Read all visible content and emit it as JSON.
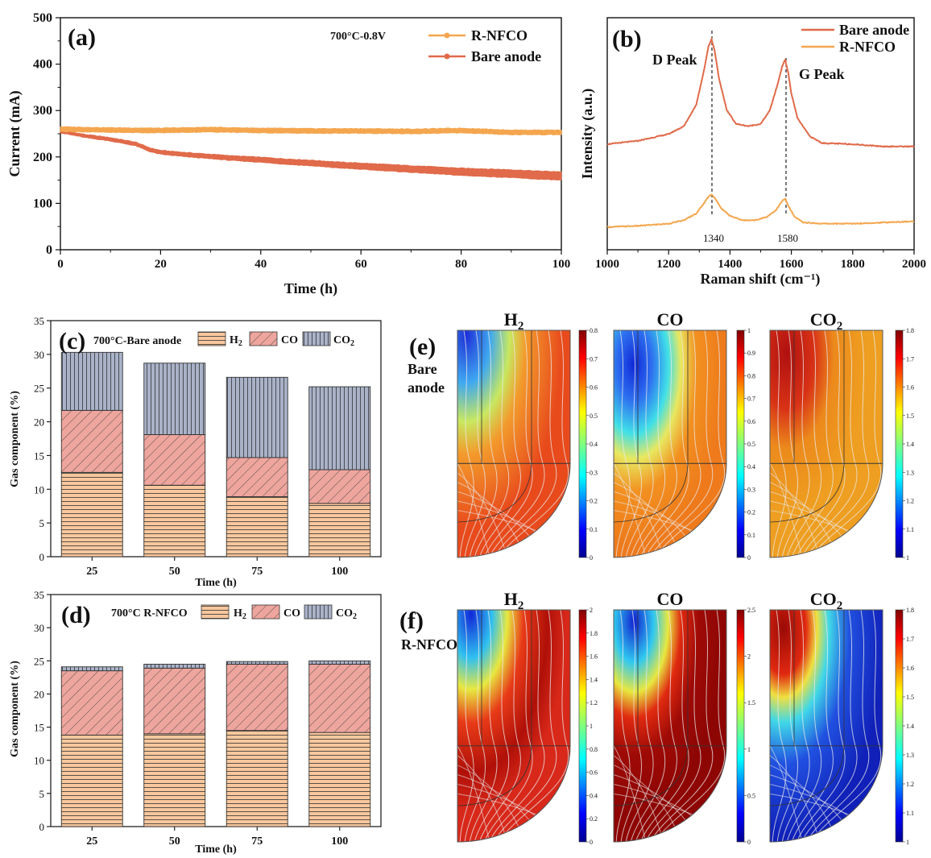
{
  "colors": {
    "rnfco": "#F4A64F",
    "bare": "#E06A4A",
    "h2": "#F8C79D",
    "co": "#EEA59D",
    "co2": "#A9B2C8"
  },
  "chart_data": [
    {
      "id": "a",
      "type": "line",
      "panel_label": "(a)",
      "title": "700°C-0.8V",
      "xlabel": "Time (h)",
      "ylabel": "Current (mA)",
      "xlim": [
        0,
        100
      ],
      "ylim": [
        0,
        500
      ],
      "xticks": [
        "0",
        "20",
        "40",
        "60",
        "80",
        "100"
      ],
      "yticks": [
        "0",
        "100",
        "200",
        "300",
        "400",
        "500"
      ],
      "legend": "top-right",
      "series": [
        {
          "name": "R-NFCO",
          "x": [
            0,
            10,
            20,
            30,
            40,
            50,
            60,
            70,
            80,
            90,
            100
          ],
          "y": [
            260,
            258,
            257,
            259,
            257,
            256,
            256,
            255,
            257,
            253,
            253
          ]
        },
        {
          "name": "Bare anode",
          "x": [
            0,
            5,
            10,
            15,
            18,
            20,
            25,
            30,
            35,
            40,
            45,
            50,
            55,
            60,
            65,
            70,
            75,
            80,
            85,
            90,
            95,
            100
          ],
          "y": [
            255,
            245,
            238,
            228,
            215,
            210,
            205,
            201,
            197,
            194,
            190,
            187,
            183,
            180,
            177,
            174,
            171,
            168,
            166,
            164,
            161,
            159
          ]
        }
      ]
    },
    {
      "id": "b",
      "type": "line",
      "panel_label": "(b)",
      "xlabel": "Raman shift (cm⁻¹)",
      "ylabel": "Intensity (a.u.)",
      "xlim": [
        1000,
        2000
      ],
      "xticks": [
        "1000",
        "1200",
        "1400",
        "1600",
        "1800",
        "2000"
      ],
      "annotations": [
        "D Peak",
        "G Peak",
        "1340",
        "1580"
      ],
      "legend": "top-right",
      "series": [
        {
          "name": "Bare anode",
          "x": [
            1000,
            1100,
            1200,
            1250,
            1290,
            1315,
            1330,
            1340,
            1350,
            1365,
            1390,
            1420,
            1460,
            1500,
            1530,
            1555,
            1570,
            1580,
            1590,
            1600,
            1620,
            1660,
            1700,
            1800,
            1900,
            2000
          ],
          "y": [
            0.15,
            0.18,
            0.24,
            0.31,
            0.5,
            0.8,
            1.02,
            1.08,
            0.98,
            0.72,
            0.45,
            0.33,
            0.31,
            0.33,
            0.45,
            0.68,
            0.84,
            0.9,
            0.78,
            0.6,
            0.38,
            0.22,
            0.16,
            0.15,
            0.13,
            0.13
          ]
        },
        {
          "name": "R-NFCO",
          "x": [
            1000,
            1100,
            1200,
            1250,
            1290,
            1315,
            1330,
            1340,
            1350,
            1370,
            1400,
            1440,
            1480,
            1520,
            1550,
            1570,
            1580,
            1590,
            1610,
            1640,
            1700,
            1800,
            1900,
            2000
          ],
          "y": [
            0.03,
            0.04,
            0.06,
            0.09,
            0.15,
            0.24,
            0.3,
            0.32,
            0.29,
            0.2,
            0.13,
            0.09,
            0.09,
            0.12,
            0.18,
            0.26,
            0.28,
            0.22,
            0.12,
            0.07,
            0.06,
            0.06,
            0.07,
            0.08
          ]
        }
      ]
    },
    {
      "id": "c",
      "type": "bar",
      "stacked": true,
      "panel_label": "(c)",
      "title": "700°C-Bare anode",
      "xlabel": "Time (h)",
      "ylabel": "Gas component (%)",
      "ylim": [
        0,
        35
      ],
      "categories": [
        "25",
        "50",
        "75",
        "100"
      ],
      "yticks": [
        "0",
        "5",
        "10",
        "15",
        "20",
        "25",
        "30",
        "35"
      ],
      "legend_items": [
        "H",
        "CO",
        "CO"
      ],
      "legend_subscripts": [
        "2",
        "",
        "2"
      ],
      "series": [
        {
          "name": "H2",
          "values": [
            12.5,
            10.6,
            8.9,
            7.9
          ]
        },
        {
          "name": "CO",
          "values": [
            9.2,
            7.5,
            5.8,
            5.0
          ]
        },
        {
          "name": "CO2",
          "values": [
            8.6,
            10.6,
            11.9,
            12.3
          ]
        }
      ]
    },
    {
      "id": "d",
      "type": "bar",
      "stacked": true,
      "panel_label": "(d)",
      "title": "700°C R-NFCO",
      "xlabel": "Time (h)",
      "ylabel": "Gas component (%)",
      "ylim": [
        0,
        35
      ],
      "categories": [
        "25",
        "50",
        "75",
        "100"
      ],
      "yticks": [
        "0",
        "5",
        "10",
        "15",
        "20",
        "25",
        "30",
        "35"
      ],
      "legend_items": [
        "H",
        "CO",
        "CO"
      ],
      "legend_subscripts": [
        "2",
        "",
        "2"
      ],
      "series": [
        {
          "name": "H2",
          "values": [
            13.8,
            14.0,
            14.5,
            14.2
          ]
        },
        {
          "name": "CO",
          "values": [
            9.7,
            9.9,
            10.0,
            10.3
          ]
        },
        {
          "name": "CO2",
          "values": [
            0.6,
            0.6,
            0.4,
            0.5
          ]
        }
      ]
    },
    {
      "id": "e",
      "type": "heatmap",
      "panel_label": "(e)",
      "row_label_1": "Bare",
      "row_label_2": "anode",
      "maps": [
        {
          "title": "H",
          "sub": "2",
          "ticks": [
            "0.8",
            "0.7",
            "0.6",
            "0.5",
            "0.4",
            "0.3",
            "0.2",
            "0.1",
            "0"
          ]
        },
        {
          "title": "CO",
          "sub": "",
          "ticks": [
            "1",
            "0.9",
            "0.8",
            "0.7",
            "0.6",
            "0.5",
            "0.4",
            "0.3",
            "0.2",
            "0.1",
            "0"
          ]
        },
        {
          "title": "CO",
          "sub": "2",
          "ticks": [
            "1.8",
            "1.7",
            "1.6",
            "1.5",
            "1.4",
            "1.3",
            "1.2",
            "1.1",
            "1"
          ]
        }
      ]
    },
    {
      "id": "f",
      "type": "heatmap",
      "panel_label": "(f)",
      "row_label_1": "R-NFCO",
      "maps": [
        {
          "title": "H",
          "sub": "2",
          "ticks": [
            "2",
            "1.8",
            "1.6",
            "1.4",
            "1.2",
            "1",
            "0.8",
            "0.6",
            "0.4",
            "0.2",
            "0"
          ]
        },
        {
          "title": "CO",
          "sub": "",
          "ticks": [
            "2.5",
            "2",
            "1.5",
            "1",
            "0.5",
            "0"
          ]
        },
        {
          "title": "CO",
          "sub": "2",
          "ticks": [
            "1.8",
            "1.7",
            "1.6",
            "1.5",
            "1.4",
            "1.3",
            "1.2",
            "1.1",
            "1"
          ]
        }
      ]
    }
  ]
}
